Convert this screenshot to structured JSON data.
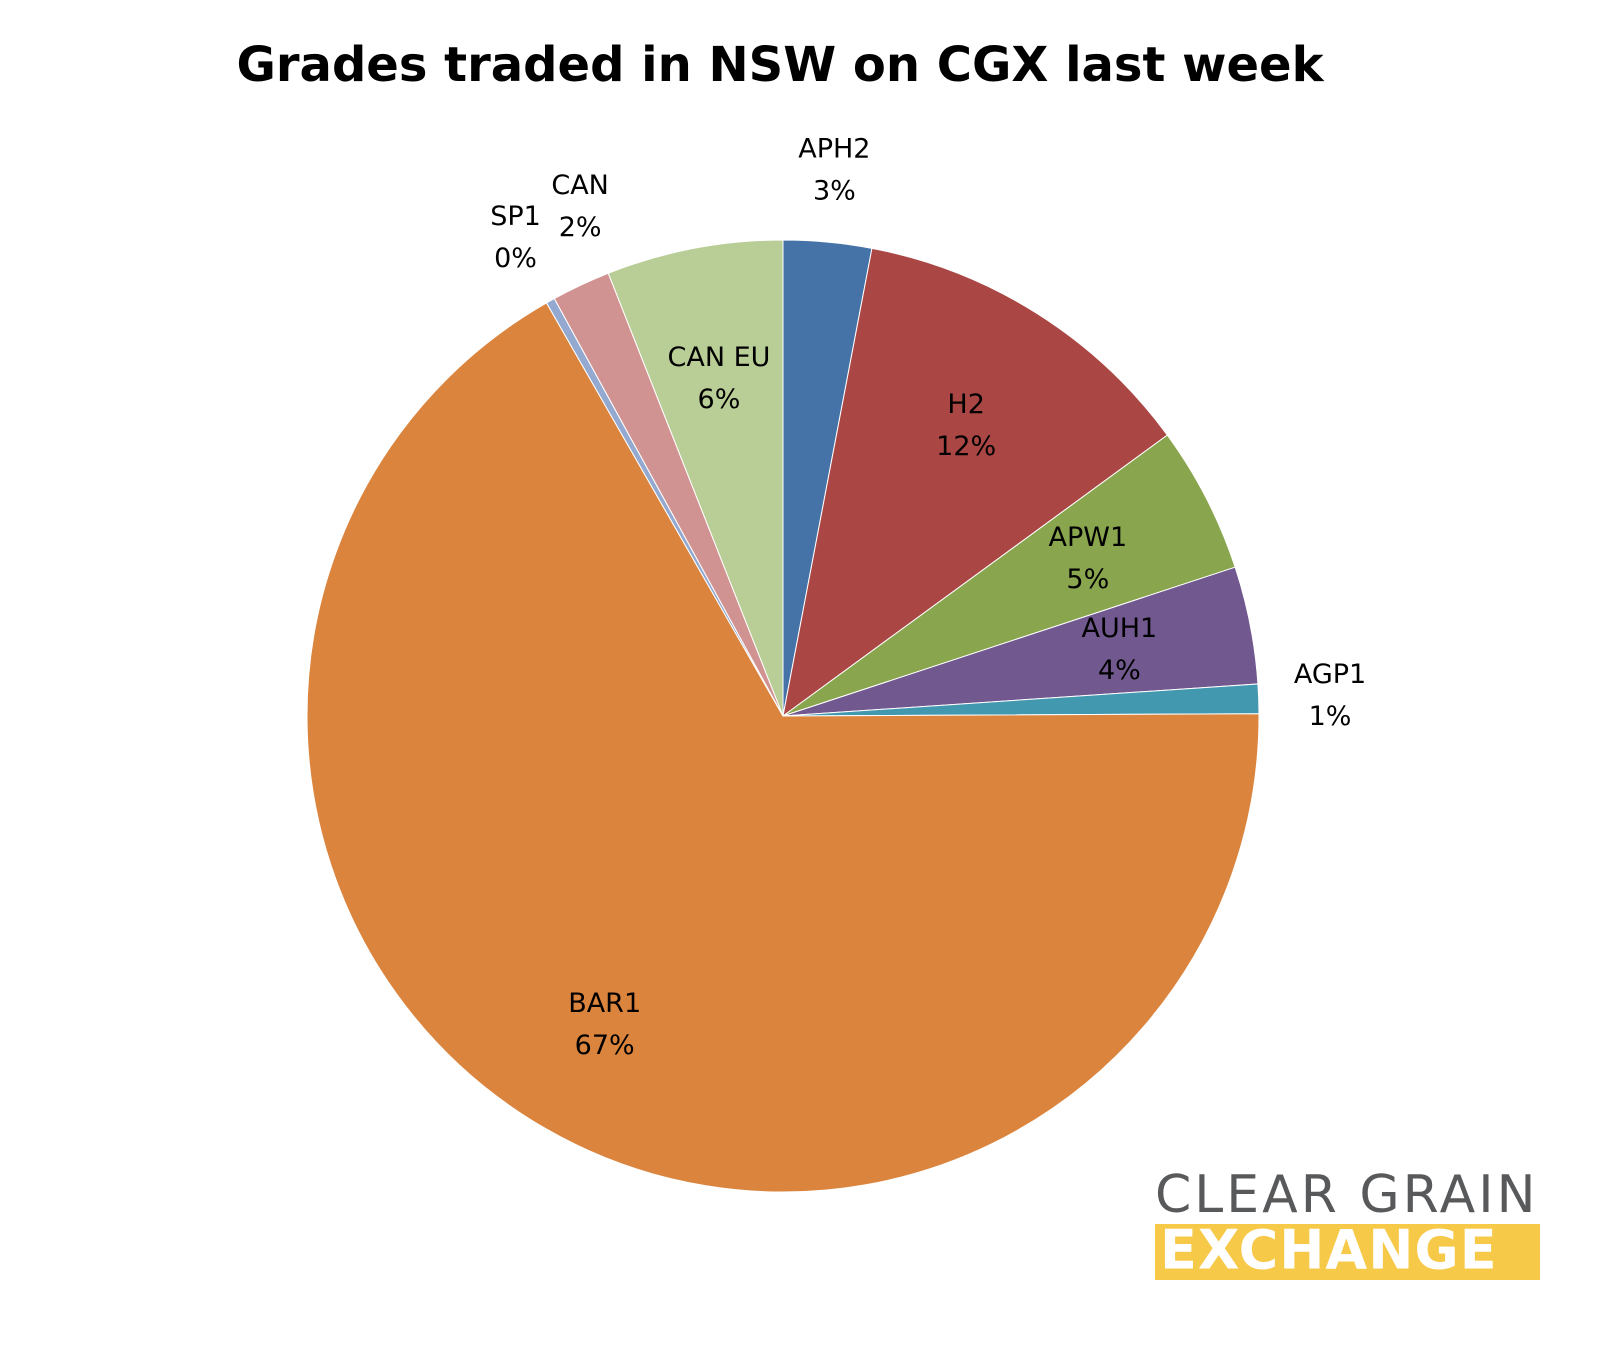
{
  "chart_data": {
    "type": "pie",
    "title": "Grades traded in NSW on CGX last week",
    "categories": [
      "APH2",
      "H2",
      "APW1",
      "AUH1",
      "AGP1",
      "BAR1",
      "SP1",
      "CAN",
      "CAN EU"
    ],
    "values": [
      3,
      12,
      5,
      4,
      1,
      67,
      0.3,
      2,
      6
    ],
    "value_labels": [
      "3%",
      "12%",
      "5%",
      "4%",
      "1%",
      "67%",
      "0%",
      "2%",
      "6%"
    ],
    "colors": [
      "#4572a7",
      "#aa4643",
      "#89a54e",
      "#71588f",
      "#4198af",
      "#db843d",
      "#93a9cf",
      "#d19392",
      "#b9cd96"
    ]
  },
  "logo": {
    "line1": "CLEAR GRAIN",
    "line2": "EXCHANGE"
  }
}
